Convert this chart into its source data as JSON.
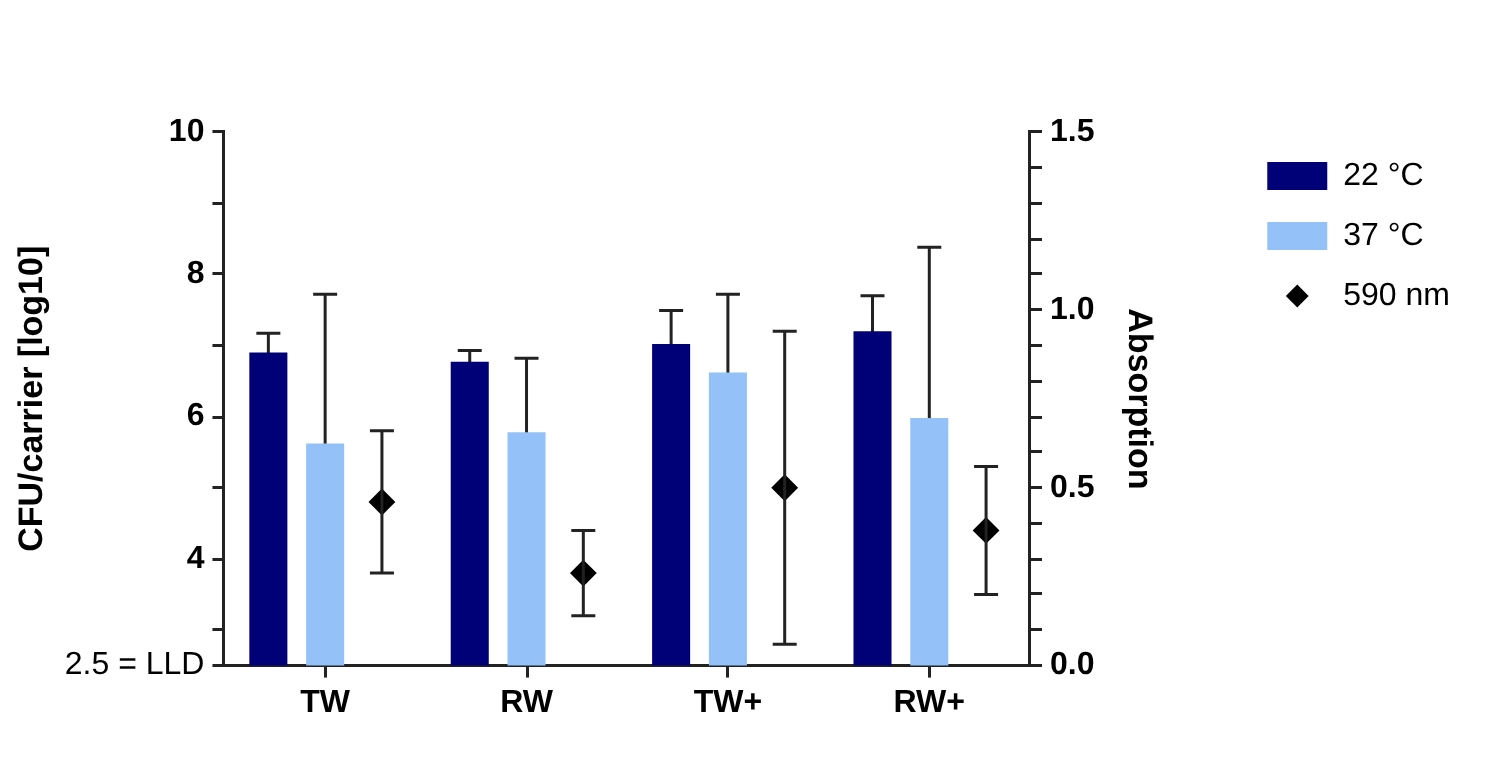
{
  "chart_data": {
    "type": "bar",
    "ylabel": "CFU/carrier [log10]",
    "y2label": "Absorption",
    "categories": [
      "TW",
      "RW",
      "TW+",
      "RW+"
    ],
    "series": [
      {
        "name": "22 °C",
        "color": "#000077",
        "values": [
          6.9,
          6.77,
          7.02,
          7.2
        ],
        "errors": [
          0.27,
          0.16,
          0.47,
          0.5
        ]
      },
      {
        "name": "37 °C",
        "color": "#94c1f7",
        "values": [
          5.62,
          5.78,
          6.62,
          5.98
        ],
        "errors": [
          2.1,
          1.04,
          1.1,
          2.4
        ]
      },
      {
        "name": "590 nm",
        "type": "scatter",
        "axis": "y2",
        "marker": "diamond",
        "color": "#000000",
        "x": [
          "TW",
          "RW",
          "TW+",
          "RW+"
        ],
        "values": [
          0.46,
          0.26,
          0.5,
          0.38
        ],
        "errors": [
          0.2,
          0.12,
          0.44,
          0.18
        ]
      }
    ],
    "ylim": [
      2.5,
      10
    ],
    "yticks": [
      {
        "value": 2.5,
        "label": "2.5 = LLD"
      },
      {
        "value": 3,
        "label": null
      },
      4,
      {
        "value": 5,
        "label": null
      },
      6,
      {
        "value": 7,
        "label": null
      },
      8,
      {
        "value": 9,
        "label": null
      },
      10
    ],
    "y2lim": [
      0,
      1.5
    ],
    "y2ticks": [
      {
        "value": 0,
        "label": "0.0"
      },
      {
        "value": 0.1,
        "label": null
      },
      {
        "value": 0.2,
        "label": null
      },
      {
        "value": 0.3,
        "label": null
      },
      {
        "value": 0.4,
        "label": null
      },
      {
        "value": 0.5,
        "label": "0.5"
      },
      {
        "value": 0.6,
        "label": null
      },
      {
        "value": 0.7,
        "label": null
      },
      {
        "value": 0.8,
        "label": null
      },
      {
        "value": 0.9,
        "label": null
      },
      {
        "value": 1,
        "label": "1.0"
      },
      {
        "value": 1.1,
        "label": null
      },
      {
        "value": 1.2,
        "label": null
      },
      {
        "value": 1.3,
        "label": null
      },
      {
        "value": 1.4,
        "label": null
      },
      {
        "value": 1.5,
        "label": "1.5"
      }
    ],
    "grid": false,
    "legend": "right"
  }
}
